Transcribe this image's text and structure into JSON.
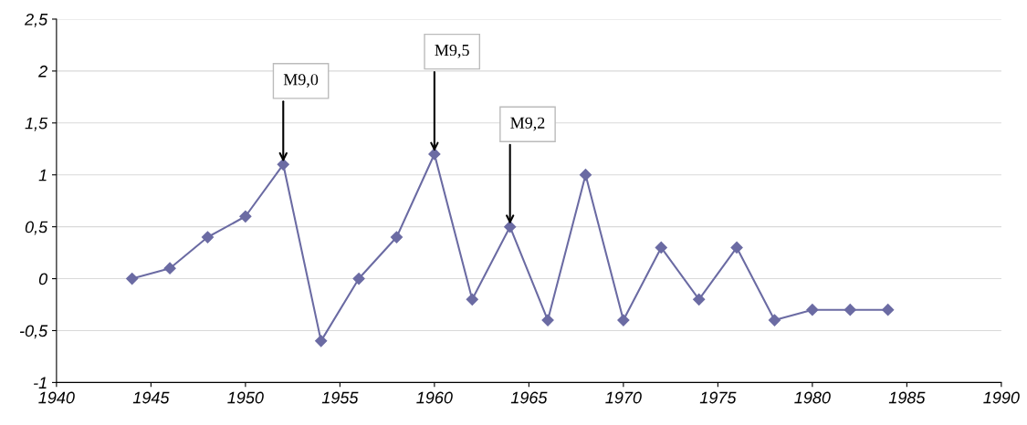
{
  "chart_data": {
    "type": "line",
    "x": [
      1944,
      1946,
      1948,
      1950,
      1952,
      1954,
      1956,
      1958,
      1960,
      1962,
      1964,
      1966,
      1968,
      1970,
      1972,
      1974,
      1976,
      1978,
      1980,
      1982,
      1984
    ],
    "series": [
      {
        "color": "#6b6ba3",
        "values": [
          0,
          0.1,
          0.4,
          0.6,
          1.1,
          -0.6,
          0,
          0.4,
          1.2,
          -0.2,
          0.5,
          -0.4,
          1.0,
          -0.4,
          0.3,
          -0.2,
          0.3,
          -0.4,
          -0.3,
          -0.3,
          -0.3
        ]
      }
    ],
    "xlim": [
      1940,
      1990
    ],
    "xticks": [
      1940,
      1945,
      1950,
      1955,
      1960,
      1965,
      1970,
      1975,
      1980,
      1985,
      1990
    ],
    "ylim": [
      -1,
      2.5
    ],
    "yticks": [
      -1,
      {
        "value": -0.5,
        "label": "-0,5"
      },
      0,
      {
        "value": 0.5,
        "label": "0,5"
      },
      1,
      {
        "value": 1.5,
        "label": "1,5"
      },
      2,
      {
        "value": 2.5,
        "label": "2,5"
      }
    ],
    "grid": "y",
    "marker": "diamond",
    "line_style": "solid",
    "annotations": [
      {
        "text": "M9,0",
        "x": 1952,
        "y": 1.1
      },
      {
        "text": "M9,5",
        "x": 1960,
        "y": 1.2
      },
      {
        "text": "M9,2",
        "x": 1964,
        "y": 0.5
      }
    ]
  }
}
